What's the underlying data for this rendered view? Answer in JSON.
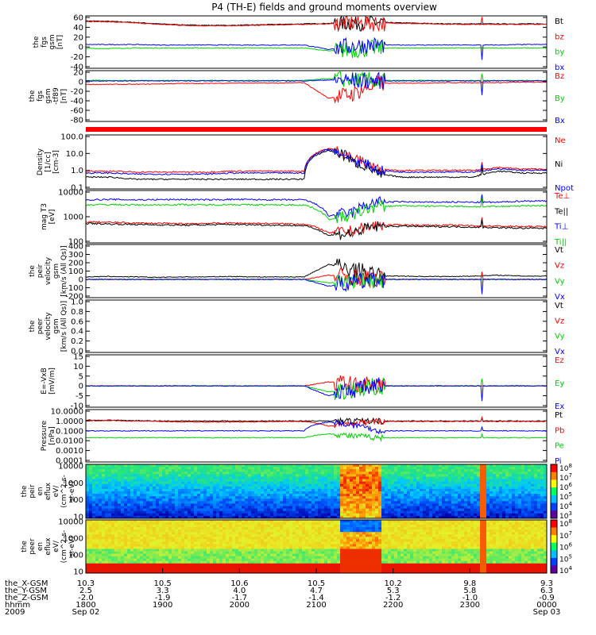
{
  "title": "P4 (TH-E) fields and ground moments overview",
  "colors": {
    "black": "#000000",
    "red": "#ff0000",
    "green": "#00d000",
    "blue": "#0000ff"
  },
  "chart_data": [
    {
      "type": "line",
      "ylabel": [
        "the",
        "fgs",
        "gsm",
        "[nT]"
      ],
      "yticks": [
        "60",
        "40",
        "20",
        "0",
        "-20",
        "-40"
      ],
      "ylim": [
        -40,
        60
      ],
      "series": [
        {
          "name": "Bt",
          "color": "black",
          "values": [
            53,
            52,
            50,
            47,
            45,
            44,
            44,
            45,
            46,
            47,
            48,
            50,
            50,
            49,
            48,
            47,
            47,
            47,
            47,
            47
          ]
        },
        {
          "name": "bz",
          "color": "red",
          "values": [
            52,
            51,
            49,
            46,
            44,
            43,
            43,
            44,
            45,
            46,
            47,
            49,
            49,
            48,
            47,
            46,
            46,
            46,
            46,
            46
          ]
        },
        {
          "name": "by",
          "color": "green",
          "values": [
            -3,
            -3,
            -2,
            -2,
            -2,
            -2,
            -2,
            -2,
            -2,
            -2,
            -8,
            -6,
            -2,
            -2,
            -2,
            -2,
            -2,
            -2,
            -2,
            -2
          ]
        },
        {
          "name": "bx",
          "color": "blue",
          "values": [
            5,
            5,
            5,
            4,
            4,
            4,
            4,
            4,
            4,
            4,
            -5,
            3,
            4,
            4,
            4,
            4,
            4,
            4,
            5,
            5
          ]
        }
      ]
    },
    {
      "type": "line",
      "ylabel": [
        "the",
        "fgs",
        "gsm",
        "-tf89",
        "[nT]"
      ],
      "yticks": [
        "20",
        "0",
        "-20",
        "-40",
        "-60",
        "-80"
      ],
      "ylim": [
        -90,
        20
      ],
      "series": [
        {
          "name": "Bz",
          "color": "red",
          "values": [
            -8,
            -8,
            -8,
            -7,
            -6,
            -6,
            -5,
            -5,
            -5,
            -4,
            -40,
            -30,
            -6,
            -5,
            -5,
            -4,
            -4,
            -4,
            -3,
            -3
          ]
        },
        {
          "name": "By",
          "color": "green",
          "values": [
            1,
            1,
            1,
            1,
            1,
            1,
            1,
            1,
            1,
            1,
            5,
            3,
            1,
            1,
            1,
            1,
            1,
            1,
            1,
            1
          ]
        },
        {
          "name": "Bx",
          "color": "blue",
          "values": [
            0,
            0,
            0,
            0,
            0,
            0,
            0,
            0,
            0,
            0,
            2,
            1,
            0,
            0,
            0,
            0,
            0,
            0,
            0,
            0
          ]
        }
      ]
    },
    {
      "type": "line",
      "ylabel": [
        "Density",
        "[1/cc]",
        "[cm-3]"
      ],
      "yticks": [
        "100.0",
        "10.0",
        "1.0",
        "0.1"
      ],
      "ylim": [
        0.1,
        100
      ],
      "scale": "log",
      "series": [
        {
          "name": "Ne",
          "color": "red",
          "values": [
            0.9,
            0.9,
            0.8,
            0.8,
            0.8,
            0.8,
            0.9,
            0.9,
            0.9,
            0.9,
            20,
            5,
            1.2,
            1.0,
            1.0,
            1.0,
            1.0,
            1.5,
            1.2,
            1.2
          ]
        },
        {
          "name": "Ni",
          "color": "black",
          "values": [
            0.4,
            0.4,
            0.3,
            0.3,
            0.3,
            0.3,
            0.3,
            0.3,
            0.3,
            0.3,
            15,
            3,
            0.6,
            0.4,
            0.4,
            0.4,
            0.4,
            0.9,
            0.7,
            0.7
          ]
        },
        {
          "name": "Npot",
          "color": "blue",
          "values": [
            0.7,
            0.7,
            0.6,
            0.6,
            0.6,
            0.6,
            0.7,
            0.7,
            0.7,
            0.7,
            18,
            4,
            1.0,
            0.8,
            0.8,
            0.8,
            0.8,
            1.2,
            1.0,
            1.0
          ]
        }
      ]
    },
    {
      "type": "line",
      "ylabel": [
        "mag T3",
        "[eV]"
      ],
      "yticks": [
        "10000",
        "1000",
        "100"
      ],
      "ylim": [
        30,
        10000
      ],
      "scale": "log",
      "series": [
        {
          "name": "Te⊥",
          "color": "red",
          "values": [
            300,
            280,
            260,
            250,
            240,
            250,
            260,
            250,
            240,
            230,
            80,
            100,
            200,
            210,
            200,
            200,
            190,
            180,
            170,
            170
          ]
        },
        {
          "name": "Te||",
          "color": "black",
          "values": [
            250,
            230,
            220,
            210,
            200,
            210,
            220,
            210,
            200,
            190,
            60,
            80,
            170,
            180,
            170,
            170,
            160,
            150,
            140,
            140
          ]
        },
        {
          "name": "Ti⊥",
          "color": "blue",
          "values": [
            4000,
            4200,
            4000,
            4100,
            4200,
            4000,
            4200,
            4100,
            4000,
            4000,
            600,
            900,
            3000,
            3200,
            3000,
            3100,
            3000,
            3000,
            3500,
            3500
          ]
        },
        {
          "name": "Ti||",
          "color": "green",
          "values": [
            2200,
            2300,
            2200,
            2200,
            2300,
            2200,
            2300,
            2200,
            2200,
            2200,
            400,
            600,
            1800,
            2000,
            1900,
            1900,
            1800,
            1800,
            2000,
            2000
          ]
        }
      ]
    },
    {
      "type": "line",
      "ylabel": [
        "the",
        "peir",
        "velocity",
        "gsm",
        "[km/s (All Qs)]"
      ],
      "yticks": [
        "400",
        "300",
        "200",
        "100",
        "0",
        "-100",
        "-200"
      ],
      "ylim": [
        -200,
        400
      ],
      "series": [
        {
          "name": "Vt",
          "color": "black",
          "values": [
            30,
            35,
            30,
            25,
            30,
            30,
            35,
            30,
            30,
            30,
            180,
            120,
            40,
            40,
            35,
            35,
            40,
            50,
            40,
            40
          ]
        },
        {
          "name": "Vz",
          "color": "red",
          "values": [
            0,
            0,
            0,
            0,
            0,
            0,
            0,
            0,
            0,
            0,
            50,
            30,
            0,
            0,
            0,
            0,
            0,
            0,
            0,
            0
          ]
        },
        {
          "name": "Vy",
          "color": "green",
          "values": [
            0,
            0,
            0,
            0,
            0,
            0,
            0,
            0,
            0,
            0,
            -40,
            -20,
            0,
            0,
            0,
            0,
            0,
            0,
            0,
            0
          ]
        },
        {
          "name": "Vx",
          "color": "blue",
          "values": [
            0,
            0,
            0,
            0,
            0,
            0,
            0,
            0,
            0,
            0,
            -80,
            -40,
            0,
            0,
            0,
            0,
            0,
            0,
            0,
            0
          ]
        }
      ]
    },
    {
      "type": "line",
      "ylabel": [
        "the",
        "peer",
        "velocity",
        "gsm",
        "[km/s (All Qs)]"
      ],
      "yticks": [
        "1.0",
        "0.8",
        "0.6",
        "0.4",
        "0.2",
        "0.0"
      ],
      "ylim": [
        0,
        1
      ],
      "series": [
        {
          "name": "Vt",
          "color": "black",
          "values": []
        },
        {
          "name": "Vz",
          "color": "red",
          "values": []
        },
        {
          "name": "Vy",
          "color": "green",
          "values": []
        },
        {
          "name": "Vx",
          "color": "blue",
          "values": []
        }
      ]
    },
    {
      "type": "line",
      "ylabel": [
        "E=-VxB",
        "[mV/m]"
      ],
      "yticks": [
        "15",
        "10",
        "5",
        "0",
        "-5",
        "-10"
      ],
      "ylim": [
        -10,
        15
      ],
      "series": [
        {
          "name": "Ez",
          "color": "red",
          "values": [
            0,
            0,
            0,
            0,
            0,
            0,
            0,
            0,
            0,
            0,
            2,
            1,
            0,
            0,
            0,
            0,
            0,
            0,
            0,
            0
          ]
        },
        {
          "name": "Ey",
          "color": "green",
          "values": [
            0,
            0,
            0,
            0,
            0,
            0,
            0,
            0,
            0,
            0,
            -3,
            -2,
            0,
            0,
            0,
            0,
            0,
            0,
            0,
            0
          ]
        },
        {
          "name": "Ex",
          "color": "blue",
          "values": [
            0,
            0,
            0,
            0,
            0,
            0,
            0,
            0,
            0,
            0,
            -5,
            -2,
            0,
            0,
            0,
            0,
            0,
            0,
            0,
            0
          ]
        }
      ]
    },
    {
      "type": "line",
      "ylabel": [
        "Pressure",
        "[nPa]"
      ],
      "yticks": [
        "10.0000",
        "1.0000",
        "0.1000",
        "0.0100",
        "0.0010",
        "0.0001"
      ],
      "ylim": [
        0.0001,
        10
      ],
      "scale": "log",
      "series": [
        {
          "name": "Pt",
          "color": "black",
          "values": [
            1.2,
            1.2,
            1.1,
            1.0,
            1.0,
            1.0,
            1.0,
            1.0,
            1.0,
            1.0,
            1.0,
            1.0,
            1.0,
            1.0,
            1.0,
            1.0,
            1.0,
            1.0,
            1.0,
            1.0
          ]
        },
        {
          "name": "Pb",
          "color": "red",
          "values": [
            1.1,
            1.1,
            1.0,
            0.9,
            0.8,
            0.8,
            0.8,
            0.8,
            0.9,
            0.9,
            0.3,
            0.5,
            0.9,
            0.9,
            0.9,
            0.9,
            0.9,
            0.9,
            0.9,
            0.9
          ]
        },
        {
          "name": "Pe",
          "color": "green",
          "values": [
            0.02,
            0.02,
            0.02,
            0.02,
            0.02,
            0.02,
            0.02,
            0.02,
            0.02,
            0.02,
            0.05,
            0.03,
            0.02,
            0.02,
            0.02,
            0.02,
            0.02,
            0.02,
            0.02,
            0.02
          ]
        },
        {
          "name": "Pi",
          "color": "blue",
          "values": [
            0.1,
            0.1,
            0.1,
            0.1,
            0.1,
            0.1,
            0.1,
            0.1,
            0.1,
            0.1,
            0.8,
            0.4,
            0.1,
            0.1,
            0.1,
            0.1,
            0.1,
            0.1,
            0.1,
            0.1
          ]
        }
      ]
    },
    {
      "type": "heatmap",
      "ylabel": [
        "the",
        "peir",
        "en",
        "eflux",
        "eV/",
        "(cm^2-s-",
        "sr-eV)"
      ],
      "yticks": [
        "10000",
        "1000",
        "100",
        "10"
      ],
      "colorbar_ticks": [
        "10^8",
        "10^7",
        "10^6",
        "10^5",
        "10^4",
        "10^3"
      ]
    },
    {
      "type": "heatmap",
      "ylabel": [
        "the",
        "peer",
        "en",
        "eflux",
        "eV/",
        "(cm^2-s-",
        "sr-eV)"
      ],
      "yticks": [
        "10000",
        "1000",
        "100",
        "10"
      ],
      "colorbar_ticks": [
        "10^8",
        "10^7",
        "10^6",
        "10^5",
        "10^4"
      ]
    }
  ],
  "xaxis": {
    "rows": [
      {
        "label": "the_X-GSM",
        "values": [
          "10.3",
          "10.5",
          "10.6",
          "10.5",
          "10.2",
          "9.8",
          "9.3"
        ]
      },
      {
        "label": "the_Y-GSM",
        "values": [
          "2.5",
          "3.3",
          "4.0",
          "4.7",
          "5.3",
          "5.8",
          "6.3"
        ]
      },
      {
        "label": "the_Z-GSM",
        "values": [
          "-2.0",
          "-1.9",
          "-1.7",
          "-1.4",
          "-1.2",
          "-1.0",
          "-0.9"
        ]
      },
      {
        "label": "hhmm",
        "values": [
          "1800",
          "1900",
          "2000",
          "2100",
          "2200",
          "2300",
          "0000"
        ]
      }
    ],
    "year": "2009",
    "start_date": "Sep 02",
    "end_date": "Sep 03"
  }
}
